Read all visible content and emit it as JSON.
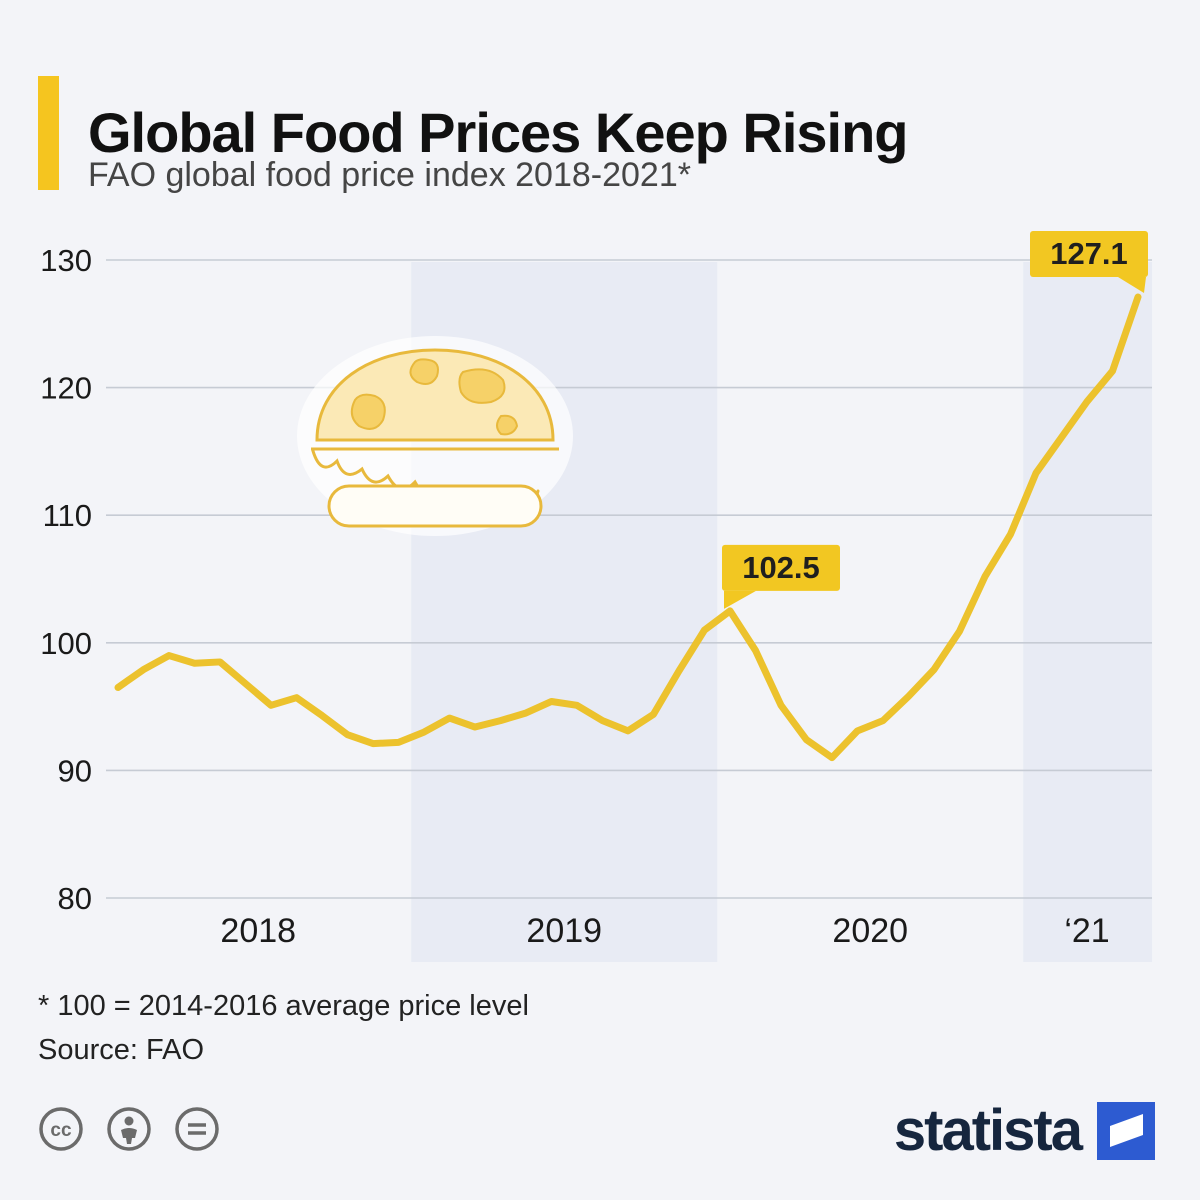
{
  "header": {
    "title": "Global Food Prices Keep Rising",
    "subtitle": "FAO global food price index 2018-2021*"
  },
  "chart_data": {
    "type": "line",
    "title": "FAO global food price index 2018-2021",
    "x_unit": "month",
    "x_start": "2018-01",
    "x_end": "2021-05",
    "ylim": [
      80,
      130
    ],
    "y_ticks": [
      130,
      120,
      110,
      100,
      90,
      80
    ],
    "x_tick_labels": [
      "2018",
      "2019",
      "2020",
      "‘21"
    ],
    "x_tick_month_centers": [
      5.5,
      17.5,
      29.5,
      38
    ],
    "grid": "horizontal",
    "bands_month_ranges": [
      [
        11.5,
        23.5
      ],
      [
        35.5,
        40.55
      ]
    ],
    "series": [
      {
        "name": "FAO global food price index",
        "color": "#ecc22d",
        "values": [
          96.5,
          97.9,
          99.0,
          98.4,
          98.5,
          96.8,
          95.1,
          95.7,
          94.3,
          92.8,
          92.1,
          92.2,
          93.0,
          94.1,
          93.4,
          93.9,
          94.5,
          95.4,
          95.1,
          93.9,
          93.1,
          94.4,
          97.8,
          101.0,
          102.5,
          99.4,
          95.1,
          92.4,
          91.0,
          93.1,
          93.9,
          95.8,
          97.9,
          100.9,
          105.2,
          108.5,
          113.3,
          116.1,
          118.9,
          121.3,
          127.1
        ]
      }
    ],
    "annotations": [
      {
        "label": "102.5",
        "value": 102.5,
        "month_index": 24,
        "pointer": "left"
      },
      {
        "label": "127.1",
        "value": 127.1,
        "month_index": 40,
        "pointer": "right"
      }
    ]
  },
  "footer": {
    "note": "* 100 = 2014-2016 average price level",
    "source": "Source: FAO"
  },
  "branding": {
    "logo_text": "statista"
  },
  "colors": {
    "background": "#f3f4f8",
    "band": "#e8ebf4",
    "grid": "#c6cbd4",
    "accent": "#f2c722",
    "line": "#ecc22d",
    "icon_gray": "#6b6b6b",
    "logo_navy": "#16263e",
    "logo_blue": "#2d5bd1"
  }
}
